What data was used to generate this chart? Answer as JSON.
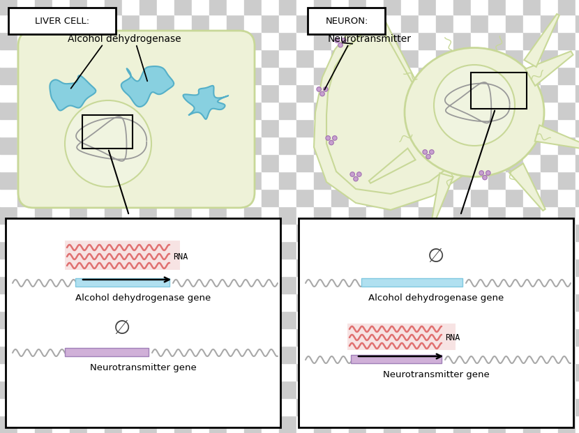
{
  "bg_c1": "#cccccc",
  "bg_c2": "#ffffff",
  "checker_size": 25,
  "liver_cell_label": "LIVER CELL:",
  "neuron_label": "NEURON:",
  "alcohol_label": "Alcohol dehydrogenase",
  "neurotransmitter_label": "Neurotransmitter",
  "cell_fill": "#eef2d8",
  "cell_edge": "#c8d898",
  "nucleus_fill": "#e8eccc",
  "blue_blob_color": "#88d0e0",
  "blue_blob_edge": "#55b0c8",
  "purple_dot_color": "#c8a0d0",
  "purple_dot_edge": "#a070b0",
  "dna_color": "#a8a8a8",
  "rna_color": "#e07070",
  "gene_blue_color": "#b0e0f0",
  "gene_purple_color": "#d0b0d8",
  "text_color": "#111111",
  "phi_color": "#444444",
  "rna_bg": "#f0c8c8"
}
